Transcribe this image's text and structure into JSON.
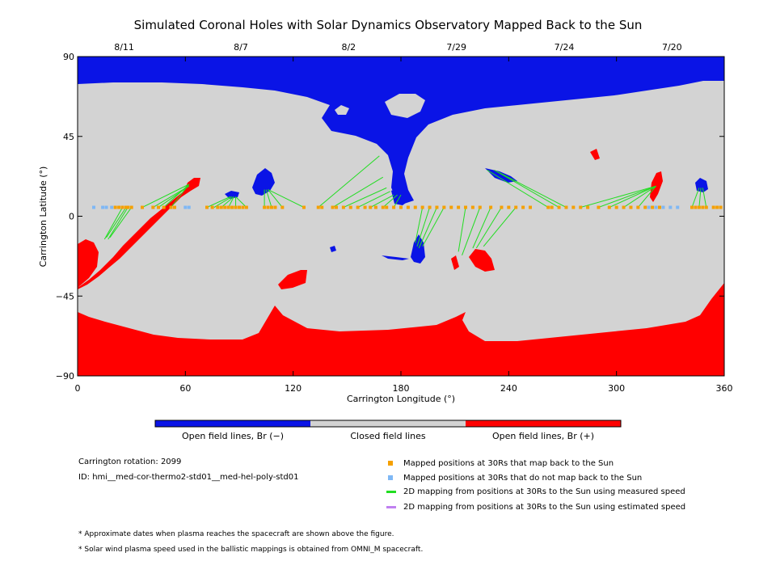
{
  "chart_data": {
    "type": "map",
    "title": "Simulated Coronal Holes with Solar Dynamics Observatory Mapped Back to the Sun",
    "xlabel": "Carrington Longitude (°)",
    "ylabel": "Carrington Latitude (°)",
    "xlim": [
      0,
      360
    ],
    "ylim": [
      -90,
      90
    ],
    "x_ticks": [
      0,
      60,
      120,
      180,
      240,
      300,
      360
    ],
    "y_ticks": [
      -90,
      -45,
      0,
      45,
      90
    ],
    "x_tick_labels": [
      "0",
      "60",
      "120",
      "180",
      "240",
      "300",
      "360"
    ],
    "y_tick_labels": [
      "−90",
      "−45",
      "0",
      "45",
      "90"
    ],
    "top_date_ticks": [
      {
        "lon": 25,
        "label": "8/11"
      },
      {
        "lon": 90,
        "label": "8/7"
      },
      {
        "lon": 150,
        "label": "8/2"
      },
      {
        "lon": 210,
        "label": "7/29"
      },
      {
        "lon": 270,
        "label": "7/24"
      },
      {
        "lon": 330,
        "label": "7/20"
      }
    ],
    "colors": {
      "open_negative": "#0a14e6",
      "closed": "#d3d3d3",
      "open_positive": "#ff0000",
      "mapped": "#f5a000",
      "not_mapped": "#7fb8f5",
      "measured_line": "#22dd22",
      "estimated_line": "#c080f0"
    },
    "colorbar_labels": [
      "Open field lines, Br (−)",
      "Closed field lines",
      "Open field lines, Br (+)"
    ],
    "mapped_positions_lat": 5,
    "mapped_positions_lon": [
      21,
      23,
      25,
      27,
      28,
      30,
      36,
      42,
      45,
      48,
      52,
      54,
      72,
      75,
      78,
      80,
      82,
      84,
      86,
      88,
      90,
      92,
      94,
      104,
      106,
      108,
      110,
      114,
      126,
      134,
      136,
      142,
      144,
      148,
      152,
      156,
      160,
      163,
      166,
      170,
      172,
      176,
      180,
      184,
      188,
      192,
      196,
      200,
      204,
      208,
      212,
      216,
      220,
      224,
      230,
      236,
      240,
      244,
      248,
      252,
      262,
      264,
      268,
      272,
      276,
      280,
      284,
      290,
      296,
      300,
      304,
      308,
      312,
      316,
      320,
      324,
      342,
      344,
      346,
      348,
      350,
      354,
      356,
      358
    ],
    "not_mapped_positions_lon": [
      9,
      14,
      16,
      19,
      60,
      62,
      318,
      322,
      326,
      330,
      334
    ],
    "mapping_lines": [
      {
        "lon": [
          25,
          15
        ],
        "lat": [
          5,
          -13
        ]
      },
      {
        "lon": [
          27,
          16
        ],
        "lat": [
          5,
          -12
        ]
      },
      {
        "lon": [
          28,
          17
        ],
        "lat": [
          5,
          -13
        ]
      },
      {
        "lon": [
          30,
          18
        ],
        "lat": [
          5,
          -12
        ]
      },
      {
        "lon": [
          36,
          62
        ],
        "lat": [
          5,
          18
        ]
      },
      {
        "lon": [
          42,
          62
        ],
        "lat": [
          5,
          17
        ]
      },
      {
        "lon": [
          45,
          62
        ],
        "lat": [
          5,
          17
        ]
      },
      {
        "lon": [
          48,
          62
        ],
        "lat": [
          5,
          18
        ]
      },
      {
        "lon": [
          52,
          62
        ],
        "lat": [
          5,
          18
        ]
      },
      {
        "lon": [
          72,
          85
        ],
        "lat": [
          5,
          11
        ]
      },
      {
        "lon": [
          76,
          86
        ],
        "lat": [
          5,
          11
        ]
      },
      {
        "lon": [
          80,
          87
        ],
        "lat": [
          5,
          11
        ]
      },
      {
        "lon": [
          84,
          87
        ],
        "lat": [
          5,
          11
        ]
      },
      {
        "lon": [
          88,
          88
        ],
        "lat": [
          5,
          11
        ]
      },
      {
        "lon": [
          94,
          88
        ],
        "lat": [
          5,
          11
        ]
      },
      {
        "lon": [
          104,
          104
        ],
        "lat": [
          5,
          15
        ]
      },
      {
        "lon": [
          108,
          105
        ],
        "lat": [
          5,
          15
        ]
      },
      {
        "lon": [
          114,
          106
        ],
        "lat": [
          5,
          15
        ]
      },
      {
        "lon": [
          126,
          106
        ],
        "lat": [
          5,
          15
        ]
      },
      {
        "lon": [
          134,
          168
        ],
        "lat": [
          5,
          34
        ]
      },
      {
        "lon": [
          142,
          170
        ],
        "lat": [
          5,
          22
        ]
      },
      {
        "lon": [
          148,
          172
        ],
        "lat": [
          5,
          16
        ]
      },
      {
        "lon": [
          156,
          174
        ],
        "lat": [
          5,
          14
        ]
      },
      {
        "lon": [
          163,
          176
        ],
        "lat": [
          5,
          12
        ]
      },
      {
        "lon": [
          170,
          178
        ],
        "lat": [
          5,
          12
        ]
      },
      {
        "lon": [
          176,
          180
        ],
        "lat": [
          5,
          12
        ]
      },
      {
        "lon": [
          192,
          188
        ],
        "lat": [
          5,
          -15
        ]
      },
      {
        "lon": [
          196,
          189
        ],
        "lat": [
          5,
          -17
        ]
      },
      {
        "lon": [
          200,
          190
        ],
        "lat": [
          5,
          -18
        ]
      },
      {
        "lon": [
          204,
          192
        ],
        "lat": [
          5,
          -17
        ]
      },
      {
        "lon": [
          216,
          212
        ],
        "lat": [
          5,
          -20
        ]
      },
      {
        "lon": [
          224,
          214
        ],
        "lat": [
          5,
          -22
        ]
      },
      {
        "lon": [
          230,
          220
        ],
        "lat": [
          5,
          -18
        ]
      },
      {
        "lon": [
          236,
          222
        ],
        "lat": [
          5,
          -18
        ]
      },
      {
        "lon": [
          244,
          226
        ],
        "lat": [
          5,
          -17
        ]
      },
      {
        "lon": [
          262,
          228
        ],
        "lat": [
          5,
          26
        ]
      },
      {
        "lon": [
          268,
          232
        ],
        "lat": [
          5,
          26
        ]
      },
      {
        "lon": [
          272,
          234
        ],
        "lat": [
          5,
          25
        ]
      },
      {
        "lon": [
          280,
          322
        ],
        "lat": [
          5,
          17
        ]
      },
      {
        "lon": [
          290,
          322
        ],
        "lat": [
          5,
          17
        ]
      },
      {
        "lon": [
          296,
          322
        ],
        "lat": [
          5,
          17
        ]
      },
      {
        "lon": [
          304,
          322
        ],
        "lat": [
          5,
          17
        ]
      },
      {
        "lon": [
          312,
          322
        ],
        "lat": [
          5,
          17
        ]
      },
      {
        "lon": [
          342,
          346
        ],
        "lat": [
          5,
          16
        ]
      },
      {
        "lon": [
          346,
          347
        ],
        "lat": [
          5,
          16
        ]
      },
      {
        "lon": [
          350,
          348
        ],
        "lat": [
          5,
          16
        ]
      }
    ],
    "regions_note": "Coronal hole polygons approximated from the image"
  },
  "legend": {
    "mapped": "Mapped positions at 30Rs that map back to the Sun",
    "not_mapped": "Mapped positions at 30Rs that do not map back to the Sun",
    "measured": "2D mapping from positions at 30Rs to the Sun using measured speed",
    "estimated": "2D mapping from positions at 30Rs to the Sun using estimated speed"
  },
  "meta": {
    "rotation": "Carrington rotation: 2099",
    "id": "ID: hmi__med-cor-thermo2-std01__med-hel-poly-std01"
  },
  "notes": {
    "dates": "* Approximate dates when plasma reaches the spacecraft are shown above the figure.",
    "speed": "* Solar wind plasma speed used in the ballistic mappings is obtained from OMNI_M spacecraft."
  }
}
